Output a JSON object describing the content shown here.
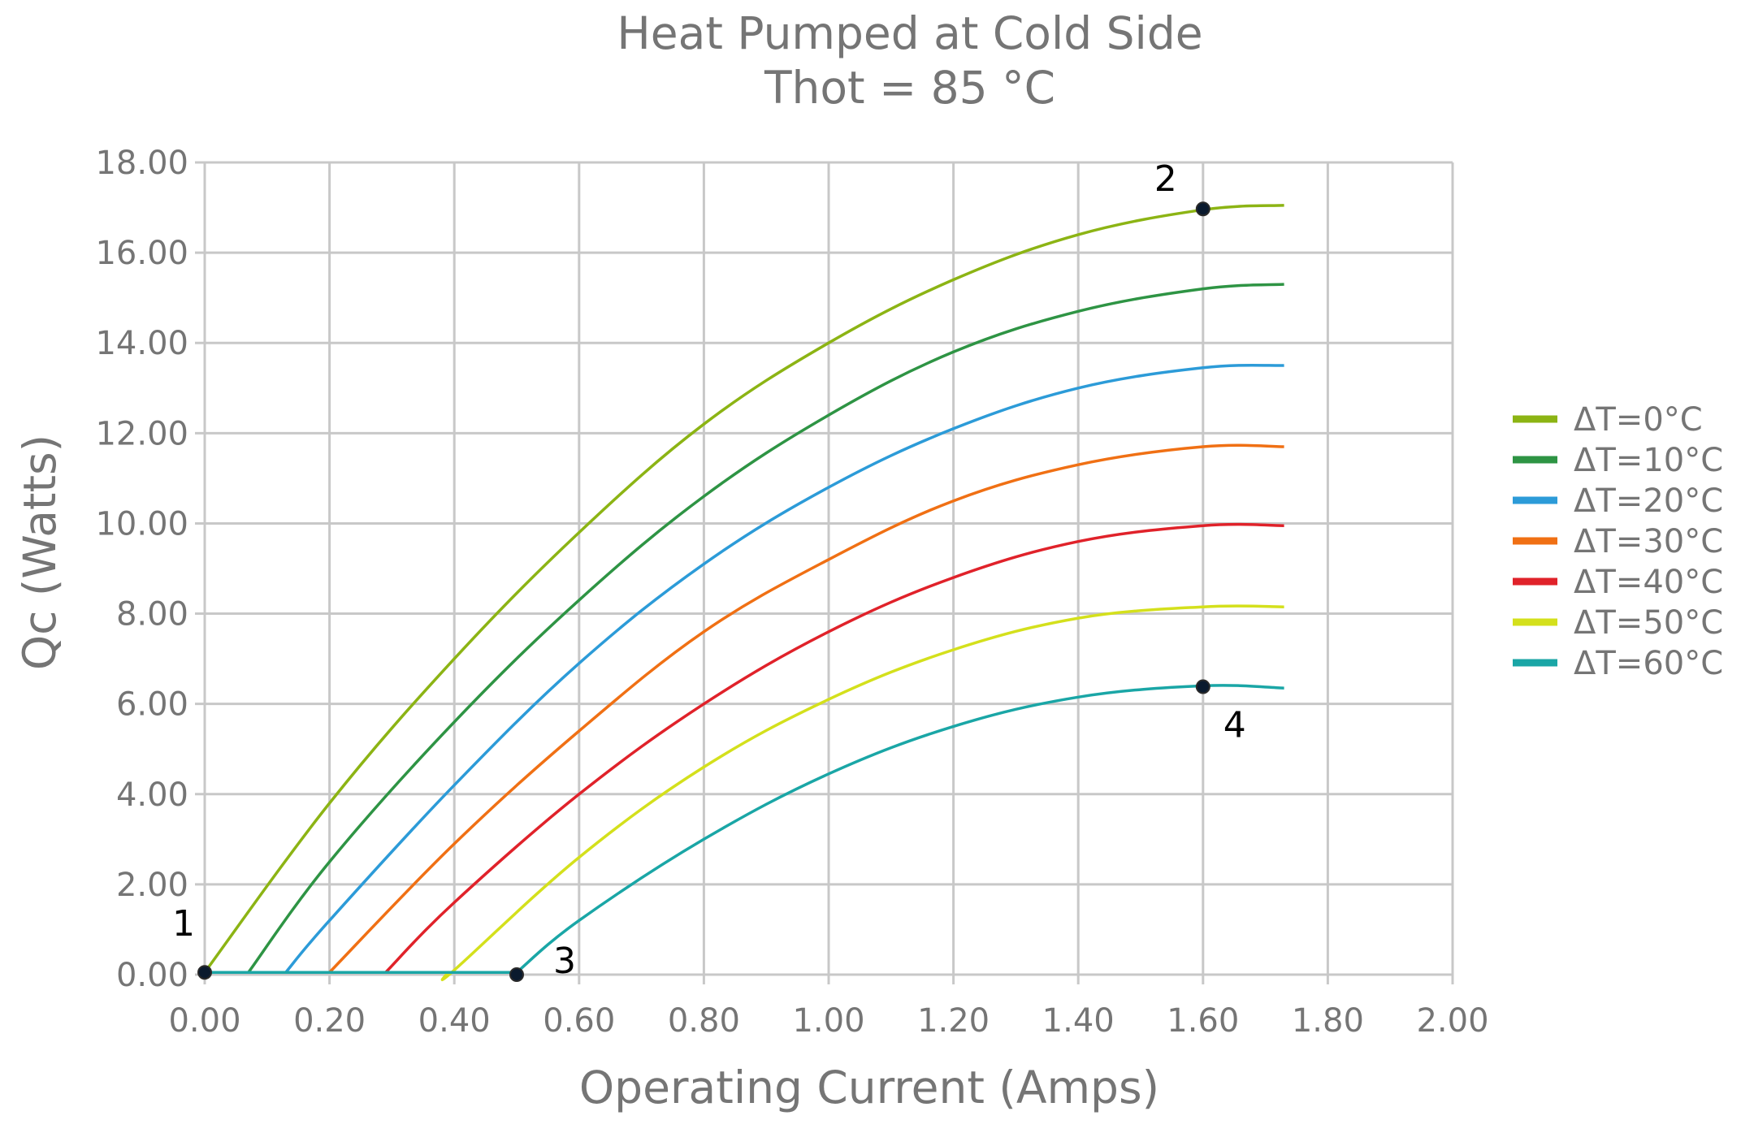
{
  "chart_data": {
    "type": "line",
    "title": "Heat Pumped at Cold Side",
    "subtitle": "Thot = 85 °C",
    "xlabel": "Operating Current (Amps)",
    "ylabel": "Qc (Watts)",
    "xlim": [
      0,
      2
    ],
    "ylim": [
      0,
      18
    ],
    "x_ticks": [
      "0.00",
      "0.20",
      "0.40",
      "0.60",
      "0.80",
      "1.00",
      "1.20",
      "1.40",
      "1.60",
      "1.80",
      "2.00"
    ],
    "y_ticks": [
      "0.00",
      "2.00",
      "4.00",
      "6.00",
      "8.00",
      "10.00",
      "12.00",
      "14.00",
      "16.00",
      "18.00"
    ],
    "grid": true,
    "legend_position": "right",
    "series": [
      {
        "name": "ΔT=0°C",
        "color": "#8cb414",
        "x": [
          0.0,
          0.2,
          0.4,
          0.6,
          0.8,
          1.0,
          1.2,
          1.4,
          1.6,
          1.73
        ],
        "y": [
          0.05,
          3.8,
          7.0,
          9.8,
          12.2,
          14.0,
          15.4,
          16.4,
          16.95,
          17.05
        ]
      },
      {
        "name": "ΔT=10°C",
        "color": "#2e9444",
        "x": [
          0.0,
          0.07,
          0.2,
          0.4,
          0.6,
          0.8,
          1.0,
          1.2,
          1.4,
          1.6,
          1.73
        ],
        "y": [
          0.05,
          0.05,
          2.5,
          5.6,
          8.3,
          10.6,
          12.4,
          13.8,
          14.7,
          15.2,
          15.3
        ]
      },
      {
        "name": "ΔT=20°C",
        "color": "#2c9bd8",
        "x": [
          0.0,
          0.13,
          0.2,
          0.4,
          0.6,
          0.8,
          1.0,
          1.2,
          1.4,
          1.6,
          1.73
        ],
        "y": [
          0.05,
          0.05,
          1.2,
          4.2,
          6.9,
          9.1,
          10.8,
          12.1,
          13.0,
          13.45,
          13.5
        ]
      },
      {
        "name": "ΔT=30°C",
        "color": "#f07014",
        "x": [
          0.0,
          0.2,
          0.4,
          0.6,
          0.8,
          1.0,
          1.2,
          1.4,
          1.6,
          1.73
        ],
        "y": [
          0.05,
          0.05,
          2.9,
          5.4,
          7.6,
          9.2,
          10.5,
          11.3,
          11.7,
          11.7
        ]
      },
      {
        "name": "ΔT=40°C",
        "color": "#e0222a",
        "x": [
          0.0,
          0.29,
          0.4,
          0.6,
          0.8,
          1.0,
          1.2,
          1.4,
          1.6,
          1.73
        ],
        "y": [
          0.05,
          0.05,
          1.6,
          4.0,
          6.0,
          7.6,
          8.8,
          9.6,
          9.95,
          9.95
        ]
      },
      {
        "name": "ΔT=50°C",
        "color": "#d4e01c",
        "x": [
          0.0,
          0.39,
          0.4,
          0.6,
          0.8,
          1.0,
          1.2,
          1.4,
          1.6,
          1.73
        ],
        "y": [
          0.05,
          0.05,
          0.1,
          2.6,
          4.6,
          6.1,
          7.2,
          7.9,
          8.15,
          8.15
        ]
      },
      {
        "name": "ΔT=60°C",
        "color": "#1aa6a6",
        "x": [
          0.0,
          0.5,
          0.6,
          0.8,
          1.0,
          1.2,
          1.4,
          1.6,
          1.73
        ],
        "y": [
          0.05,
          0.05,
          1.2,
          3.0,
          4.45,
          5.5,
          6.15,
          6.4,
          6.35
        ]
      }
    ],
    "points": [
      {
        "label": "1",
        "x": 0.0,
        "y": 0.05
      },
      {
        "label": "2",
        "x": 1.6,
        "y": 16.97
      },
      {
        "label": "3",
        "x": 0.5,
        "y": 0.0
      },
      {
        "label": "4",
        "x": 1.6,
        "y": 6.38
      }
    ]
  }
}
